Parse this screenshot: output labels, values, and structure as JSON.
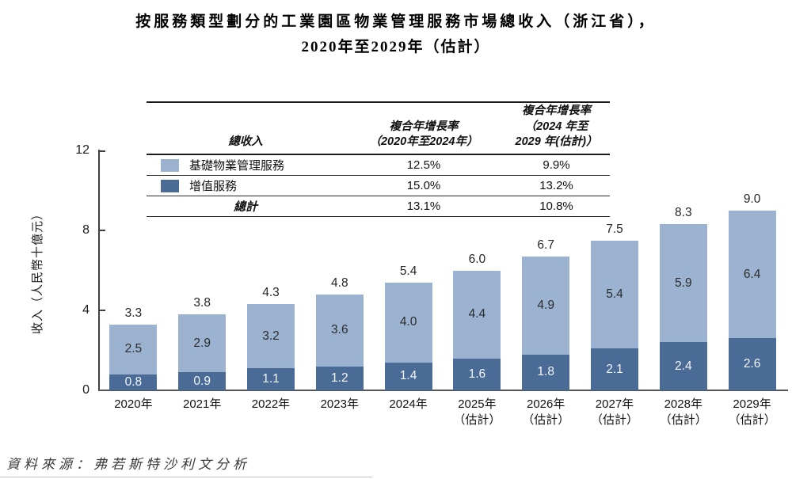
{
  "title": {
    "line1": "按服務類型劃分的工業園區物業管理服務市場總收入（浙江省），",
    "line2": "2020年至2029年（估計）"
  },
  "legend_table": {
    "col1_header": "總收入",
    "col2_header": [
      "複合年增長率",
      "（2020年至2024年）"
    ],
    "col3_header": [
      "複合年增長率",
      "（2024 年至",
      "2029 年(估計)）"
    ],
    "rows": [
      {
        "label": "基礎物業管理服務",
        "cagr_2020_2024": "12.5%",
        "cagr_2024_2029": "9.9%"
      },
      {
        "label": "增值服務",
        "cagr_2020_2024": "15.0%",
        "cagr_2024_2029": "13.2%"
      },
      {
        "label": "總計",
        "cagr_2020_2024": "13.1%",
        "cagr_2024_2029": "10.8%"
      }
    ]
  },
  "chart_data": {
    "type": "bar",
    "stacked": true,
    "title": "按服務類型劃分的工業園區物業管理服務市場總收入（浙江省），2020年至2029年（估計）",
    "ylabel": "收入（人民幣十億元）",
    "ylim": [
      0,
      12
    ],
    "yticks": [
      0,
      4,
      8,
      12
    ],
    "categories": [
      {
        "year": "2020年",
        "note": ""
      },
      {
        "year": "2021年",
        "note": ""
      },
      {
        "year": "2022年",
        "note": ""
      },
      {
        "year": "2023年",
        "note": ""
      },
      {
        "year": "2024年",
        "note": ""
      },
      {
        "year": "2025年",
        "note": "（估計）"
      },
      {
        "year": "2026年",
        "note": "（估計）"
      },
      {
        "year": "2027年",
        "note": "（估計）"
      },
      {
        "year": "2028年",
        "note": "（估計）"
      },
      {
        "year": "2029年",
        "note": "（估計）"
      }
    ],
    "series": [
      {
        "name": "基礎物業管理服務",
        "values": [
          2.5,
          2.9,
          3.2,
          3.6,
          4.0,
          4.4,
          4.9,
          5.4,
          5.9,
          6.4
        ]
      },
      {
        "name": "增值服務",
        "values": [
          0.8,
          0.9,
          1.1,
          1.2,
          1.4,
          1.6,
          1.8,
          2.1,
          2.4,
          2.6
        ]
      }
    ],
    "totals": [
      3.3,
      3.8,
      4.3,
      4.8,
      5.4,
      6.0,
      6.7,
      7.5,
      8.3,
      9.0
    ]
  },
  "colors": {
    "basic": "#9bb3d1",
    "value_added": "#4a6b95",
    "axis": "#3f3f3f"
  },
  "source": "資料來源：弗若斯特沙利文分析"
}
